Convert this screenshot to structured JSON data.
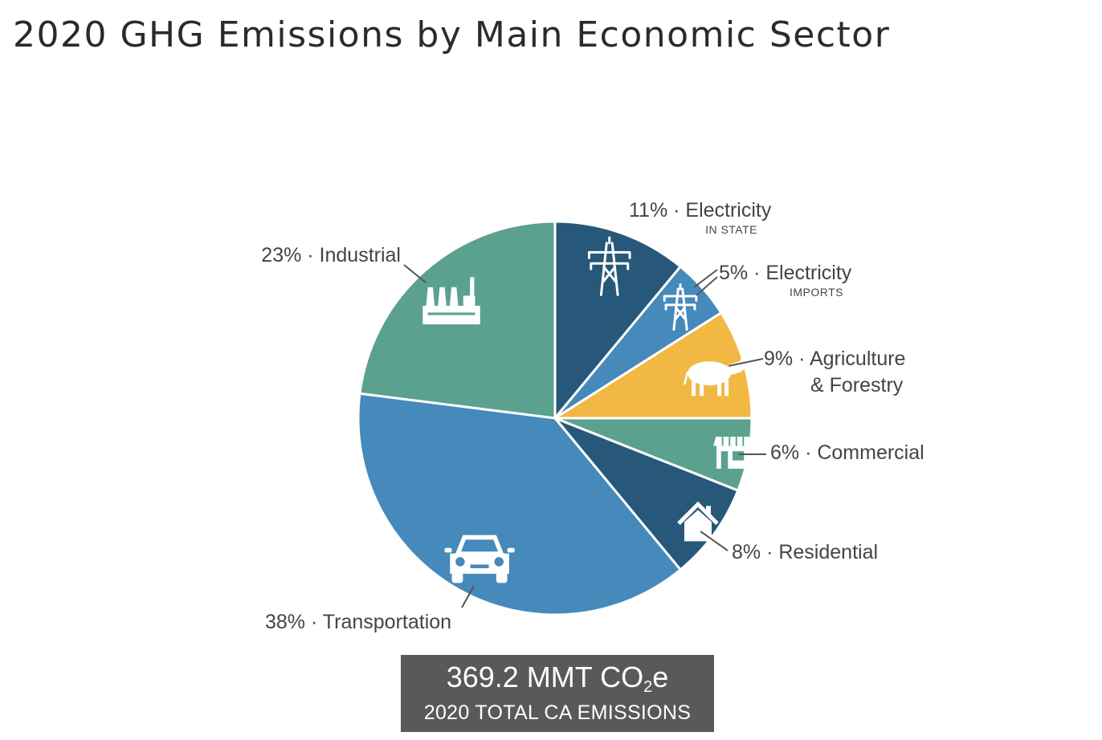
{
  "title": "2020 GHG Emissions by Main Economic Sector",
  "total": {
    "value_prefix": "369.2 MMT CO",
    "value_subscript": "2",
    "value_suffix": "e",
    "caption": "2020 TOTAL CA EMISSIONS"
  },
  "chart_data": {
    "type": "pie",
    "title": "2020 GHG Emissions by Main Economic Sector",
    "unit": "%",
    "slices": [
      {
        "label": "11% · Electricity",
        "sublabel": "IN STATE",
        "value": 11,
        "color": "#275879",
        "icon": "power-tower-icon"
      },
      {
        "label": "5% · Electricity",
        "sublabel": "IMPORTS",
        "value": 5,
        "color": "#4689bb",
        "icon": "power-tower-icon"
      },
      {
        "label": "9% · Agriculture",
        "label_line2": "& Forestry",
        "value": 9,
        "color": "#f2b844",
        "icon": "cow-icon"
      },
      {
        "label": "6% · Commercial",
        "value": 6,
        "color": "#5aa190",
        "icon": "storefront-icon"
      },
      {
        "label": "8% · Residential",
        "value": 8,
        "color": "#275879",
        "icon": "house-icon"
      },
      {
        "label": "38% · Transportation",
        "value": 38,
        "color": "#4689bb",
        "icon": "car-icon"
      },
      {
        "label": "23% · Industrial",
        "value": 23,
        "color": "#5aa190",
        "icon": "factory-icon"
      }
    ]
  }
}
